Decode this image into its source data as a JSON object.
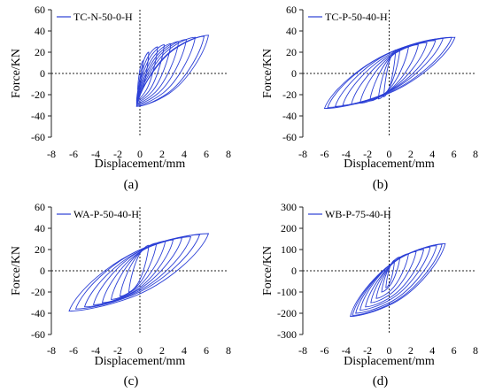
{
  "chart_data": [
    {
      "type": "line",
      "panel_label": "(a)",
      "xlabel": "Displacement/mm",
      "ylabel": "Force/KN",
      "xlim": [
        -8,
        8
      ],
      "ylim": [
        -60,
        60
      ],
      "xticks": [
        -8,
        -6,
        -4,
        -2,
        0,
        2,
        4,
        6,
        8
      ],
      "yticks": [
        -60,
        -40,
        -20,
        0,
        20,
        40,
        60
      ],
      "grid": false,
      "legend_position": "top-left",
      "series": [
        {
          "name": "TC-N-50-0-H",
          "color": "#2b3fd6",
          "loops": [
            {
              "xmin": -0.2,
              "xmax": 0.3,
              "ymin": -15,
              "ymax": 12
            },
            {
              "xmin": -0.2,
              "xmax": 0.8,
              "ymin": -22,
              "ymax": 20
            },
            {
              "xmin": -0.3,
              "xmax": 1.6,
              "ymin": -25,
              "ymax": 25
            },
            {
              "xmin": -0.3,
              "xmax": 2.2,
              "ymin": -26,
              "ymax": 27
            },
            {
              "xmin": -0.3,
              "xmax": 2.8,
              "ymin": -27,
              "ymax": 28
            },
            {
              "xmin": -0.3,
              "xmax": 3.5,
              "ymin": -28,
              "ymax": 30
            },
            {
              "xmin": -0.3,
              "xmax": 4.2,
              "ymin": -29,
              "ymax": 32
            },
            {
              "xmin": -0.3,
              "xmax": 5.0,
              "ymin": -30,
              "ymax": 34
            },
            {
              "xmin": -0.3,
              "xmax": 5.8,
              "ymin": -31,
              "ymax": 35
            },
            {
              "xmin": -0.3,
              "xmax": 6.2,
              "ymin": -31,
              "ymax": 36
            }
          ]
        }
      ]
    },
    {
      "type": "line",
      "panel_label": "(b)",
      "xlabel": "Displacement/mm",
      "ylabel": "Force/KN",
      "xlim": [
        -8,
        8
      ],
      "ylim": [
        -60,
        60
      ],
      "xticks": [
        -8,
        -6,
        -4,
        -2,
        0,
        2,
        4,
        6,
        8
      ],
      "yticks": [
        -60,
        -40,
        -20,
        0,
        20,
        40,
        60
      ],
      "grid": false,
      "legend_position": "top-left",
      "series": [
        {
          "name": "TC-P-50-40-H",
          "color": "#2b3fd6",
          "loops": [
            {
              "xmin": -0.5,
              "xmax": 0.6,
              "ymin": -22,
              "ymax": 22
            },
            {
              "xmin": -1.0,
              "xmax": 1.0,
              "ymin": -24,
              "ymax": 23
            },
            {
              "xmin": -1.8,
              "xmax": 1.8,
              "ymin": -26,
              "ymax": 25
            },
            {
              "xmin": -2.7,
              "xmax": 2.7,
              "ymin": -28,
              "ymax": 27
            },
            {
              "xmin": -3.5,
              "xmax": 3.5,
              "ymin": -29,
              "ymax": 29
            },
            {
              "xmin": -4.3,
              "xmax": 4.3,
              "ymin": -30,
              "ymax": 31
            },
            {
              "xmin": -5.0,
              "xmax": 5.0,
              "ymin": -31,
              "ymax": 33
            },
            {
              "xmin": -5.7,
              "xmax": 5.8,
              "ymin": -32,
              "ymax": 34
            },
            {
              "xmin": -6.0,
              "xmax": 6.1,
              "ymin": -33,
              "ymax": 34
            }
          ]
        }
      ]
    },
    {
      "type": "line",
      "panel_label": "(c)",
      "xlabel": "Displacement/mm",
      "ylabel": "Force/KN",
      "xlim": [
        -8,
        8
      ],
      "ylim": [
        -60,
        60
      ],
      "xticks": [
        -8,
        -6,
        -4,
        -2,
        0,
        2,
        4,
        6,
        8
      ],
      "yticks": [
        -60,
        -40,
        -20,
        0,
        20,
        40,
        60
      ],
      "grid": false,
      "legend_position": "top-left",
      "series": [
        {
          "name": "WA-P-50-40-H",
          "color": "#2b3fd6",
          "loops": [
            {
              "xmin": -1.0,
              "xmax": 0.8,
              "ymin": -20,
              "ymax": 24
            },
            {
              "xmin": -1.8,
              "xmax": 1.5,
              "ymin": -24,
              "ymax": 26
            },
            {
              "xmin": -2.6,
              "xmax": 2.3,
              "ymin": -27,
              "ymax": 28
            },
            {
              "xmin": -3.4,
              "xmax": 3.0,
              "ymin": -30,
              "ymax": 29
            },
            {
              "xmin": -4.2,
              "xmax": 3.8,
              "ymin": -32,
              "ymax": 31
            },
            {
              "xmin": -5.0,
              "xmax": 4.6,
              "ymin": -34,
              "ymax": 32
            },
            {
              "xmin": -5.8,
              "xmax": 5.4,
              "ymin": -36,
              "ymax": 34
            },
            {
              "xmin": -6.4,
              "xmax": 6.2,
              "ymin": -38,
              "ymax": 35
            }
          ]
        }
      ]
    },
    {
      "type": "line",
      "panel_label": "(d)",
      "xlabel": "Displacement/mm",
      "ylabel": "Force/KN",
      "xlim": [
        -8,
        8
      ],
      "ylim": [
        -300,
        300
      ],
      "xticks": [
        -8,
        -6,
        -4,
        -2,
        0,
        2,
        4,
        6,
        8
      ],
      "yticks": [
        -300,
        -200,
        -100,
        0,
        100,
        200,
        300
      ],
      "grid": false,
      "legend_position": "top-left",
      "series": [
        {
          "name": "WB-P-75-40-H",
          "color": "#2b3fd6",
          "loops": [
            {
              "xmin": -0.3,
              "xmax": 0.5,
              "ymin": -80,
              "ymax": 50
            },
            {
              "xmin": -0.7,
              "xmax": 1.0,
              "ymin": -100,
              "ymax": 65
            },
            {
              "xmin": -1.2,
              "xmax": 1.8,
              "ymin": -130,
              "ymax": 80
            },
            {
              "xmin": -1.7,
              "xmax": 2.5,
              "ymin": -150,
              "ymax": 90
            },
            {
              "xmin": -2.2,
              "xmax": 3.2,
              "ymin": -170,
              "ymax": 100
            },
            {
              "xmin": -2.7,
              "xmax": 3.8,
              "ymin": -185,
              "ymax": 110
            },
            {
              "xmin": -3.1,
              "xmax": 4.4,
              "ymin": -200,
              "ymax": 118
            },
            {
              "xmin": -3.4,
              "xmax": 4.9,
              "ymin": -210,
              "ymax": 125
            },
            {
              "xmin": -3.6,
              "xmax": 5.2,
              "ymin": -215,
              "ymax": 128
            }
          ]
        }
      ]
    }
  ]
}
